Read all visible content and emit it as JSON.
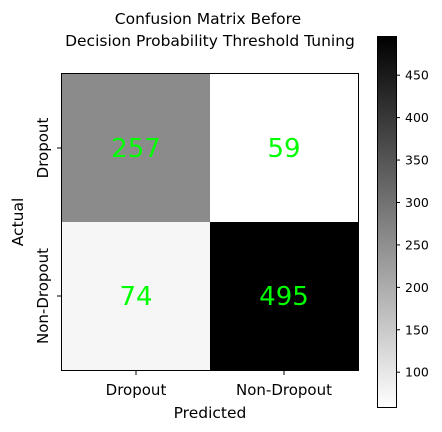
{
  "chart_data": {
    "type": "heatmap",
    "title_lines": [
      "Confusion Matrix Before",
      "Decision Probability Threshold Tuning"
    ],
    "xlabel": "Predicted",
    "ylabel": "Actual",
    "x_categories": [
      "Dropout",
      "Non-Dropout"
    ],
    "y_categories": [
      "Dropout",
      "Non-Dropout"
    ],
    "values": [
      [
        257,
        59
      ],
      [
        74,
        495
      ]
    ],
    "colormap": "gray_r",
    "vmin": 59,
    "vmax": 495,
    "label_color": "#00ff00",
    "colorbar": {
      "ticks": [
        100,
        150,
        200,
        250,
        300,
        350,
        400,
        450
      ]
    }
  }
}
